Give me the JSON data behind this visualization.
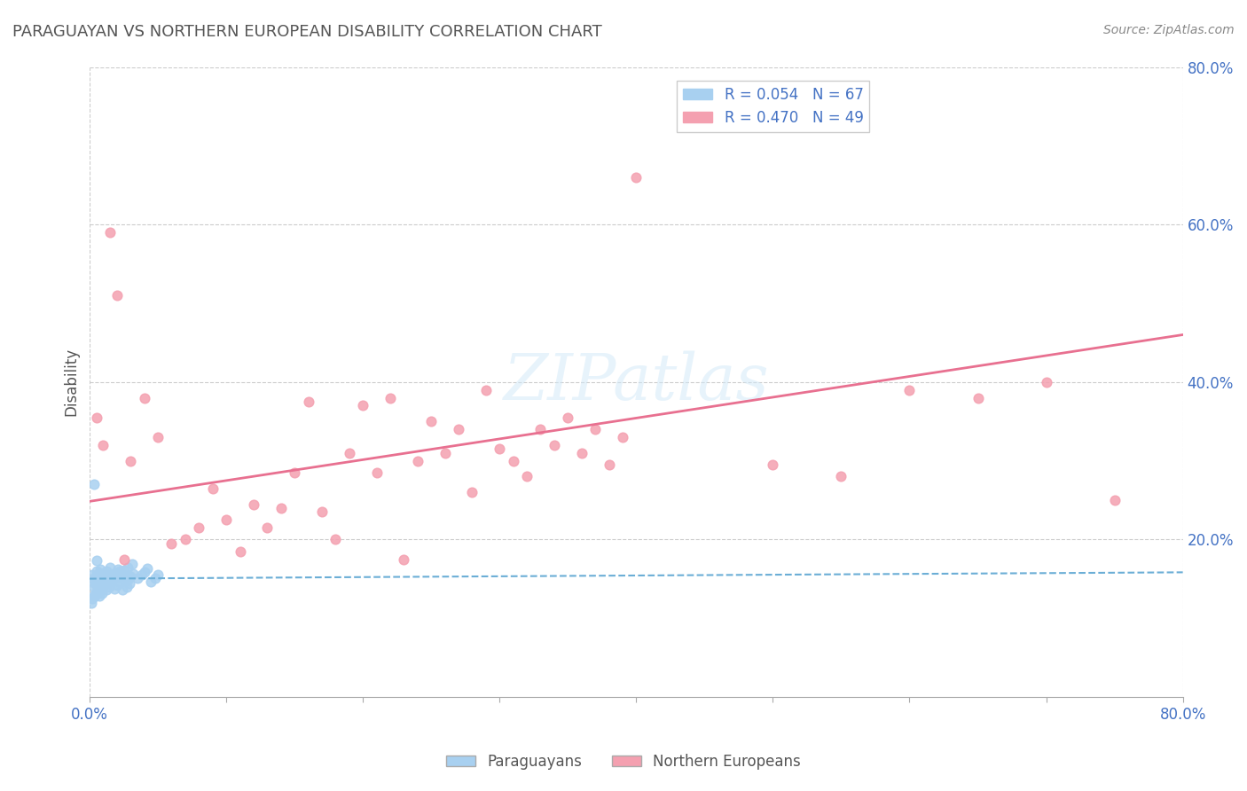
{
  "title": "PARAGUAYAN VS NORTHERN EUROPEAN DISABILITY CORRELATION CHART",
  "source": "Source: ZipAtlas.com",
  "ylabel": "Disability",
  "xlim": [
    0.0,
    0.8
  ],
  "ylim": [
    0.0,
    0.8
  ],
  "ytick_labels": [
    "20.0%",
    "40.0%",
    "60.0%",
    "80.0%"
  ],
  "ytick_values": [
    0.2,
    0.4,
    0.6,
    0.8
  ],
  "paraguayan_R": 0.054,
  "paraguayan_N": 67,
  "northern_R": 0.47,
  "northern_N": 49,
  "paraguayan_color": "#a8d0f0",
  "northern_color": "#f4a0b0",
  "paraguayan_line_color": "#6baed6",
  "northern_line_color": "#e87090",
  "paraguayan_x": [
    0.002,
    0.003,
    0.004,
    0.005,
    0.006,
    0.007,
    0.008,
    0.01,
    0.012,
    0.015,
    0.018,
    0.02,
    0.022,
    0.025,
    0.028,
    0.03,
    0.032,
    0.035,
    0.038,
    0.04,
    0.042,
    0.045,
    0.048,
    0.05,
    0.003,
    0.004,
    0.006,
    0.008,
    0.01,
    0.012,
    0.015,
    0.018,
    0.02,
    0.022,
    0.025,
    0.028,
    0.003,
    0.005,
    0.007,
    0.009,
    0.011,
    0.013,
    0.016,
    0.019,
    0.021,
    0.024,
    0.027,
    0.029,
    0.002,
    0.004,
    0.006,
    0.008,
    0.01,
    0.013,
    0.016,
    0.019,
    0.022,
    0.025,
    0.028,
    0.031,
    0.001,
    0.003,
    0.005,
    0.007,
    0.009,
    0.012,
    0.014
  ],
  "paraguayan_y": [
    0.155,
    0.148,
    0.152,
    0.16,
    0.145,
    0.158,
    0.162,
    0.15,
    0.155,
    0.148,
    0.152,
    0.156,
    0.16,
    0.154,
    0.149,
    0.153,
    0.157,
    0.151,
    0.155,
    0.159,
    0.163,
    0.147,
    0.151,
    0.155,
    0.14,
    0.144,
    0.148,
    0.152,
    0.156,
    0.16,
    0.164,
    0.138,
    0.142,
    0.146,
    0.15,
    0.154,
    0.13,
    0.134,
    0.138,
    0.142,
    0.146,
    0.15,
    0.154,
    0.158,
    0.162,
    0.136,
    0.14,
    0.144,
    0.125,
    0.129,
    0.133,
    0.137,
    0.141,
    0.145,
    0.149,
    0.153,
    0.157,
    0.161,
    0.165,
    0.169,
    0.12,
    0.27,
    0.173,
    0.128,
    0.132,
    0.136,
    0.14
  ],
  "northern_x": [
    0.005,
    0.01,
    0.015,
    0.02,
    0.025,
    0.03,
    0.04,
    0.05,
    0.06,
    0.07,
    0.08,
    0.09,
    0.1,
    0.11,
    0.12,
    0.13,
    0.14,
    0.15,
    0.16,
    0.17,
    0.18,
    0.19,
    0.2,
    0.21,
    0.22,
    0.23,
    0.24,
    0.25,
    0.26,
    0.27,
    0.28,
    0.29,
    0.3,
    0.31,
    0.32,
    0.33,
    0.34,
    0.35,
    0.36,
    0.37,
    0.38,
    0.39,
    0.4,
    0.5,
    0.55,
    0.6,
    0.65,
    0.7,
    0.75
  ],
  "northern_y": [
    0.355,
    0.32,
    0.59,
    0.51,
    0.175,
    0.3,
    0.38,
    0.33,
    0.195,
    0.2,
    0.215,
    0.265,
    0.225,
    0.185,
    0.245,
    0.215,
    0.24,
    0.285,
    0.375,
    0.235,
    0.2,
    0.31,
    0.37,
    0.285,
    0.38,
    0.175,
    0.3,
    0.35,
    0.31,
    0.34,
    0.26,
    0.39,
    0.315,
    0.3,
    0.28,
    0.34,
    0.32,
    0.355,
    0.31,
    0.34,
    0.295,
    0.33,
    0.66,
    0.295,
    0.28,
    0.39,
    0.38,
    0.4,
    0.25
  ]
}
